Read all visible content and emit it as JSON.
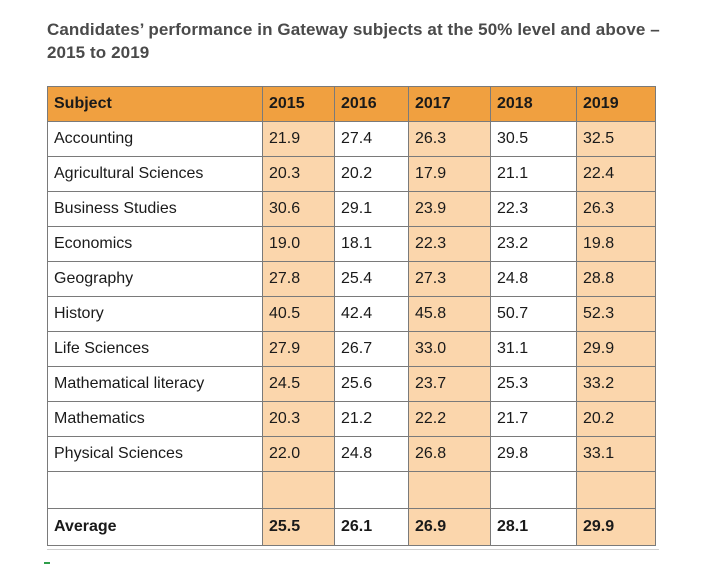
{
  "title": "Candidates’ performance in Gateway subjects at the 50% level and above – 2015 to 2019",
  "table": {
    "headers": [
      "Subject",
      "2015",
      "2016",
      "2017",
      "2018",
      "2019"
    ],
    "rows": [
      [
        "Accounting",
        "21.9",
        "27.4",
        "26.3",
        "30.5",
        "32.5"
      ],
      [
        "Agricultural Sciences",
        "20.3",
        "20.2",
        "17.9",
        "21.1",
        "22.4"
      ],
      [
        "Business Studies",
        "30.6",
        "29.1",
        "23.9",
        "22.3",
        "26.3"
      ],
      [
        "Economics",
        "19.0",
        "18.1",
        "22.3",
        "23.2",
        "19.8"
      ],
      [
        "Geography",
        "27.8",
        "25.4",
        "27.3",
        "24.8",
        "28.8"
      ],
      [
        "History",
        "40.5",
        "42.4",
        "45.8",
        "50.7",
        "52.3"
      ],
      [
        "Life Sciences",
        "27.9",
        "26.7",
        "33.0",
        "31.1",
        "29.9"
      ],
      [
        "Mathematical literacy",
        "24.5",
        "25.6",
        "23.7",
        "25.3",
        "33.2"
      ],
      [
        "Mathematics",
        "20.3",
        "21.2",
        "22.2",
        "21.7",
        "20.2"
      ],
      [
        "Physical Sciences",
        "22.0",
        "24.8",
        "26.8",
        "29.8",
        "33.1"
      ]
    ],
    "average": [
      "Average",
      "25.5",
      "26.1",
      "26.9",
      "28.1",
      "29.9"
    ]
  },
  "colors": {
    "header_bg": "#f0a040",
    "alt_column_bg": "#fbd6ac",
    "border": "#7a7a7a"
  }
}
